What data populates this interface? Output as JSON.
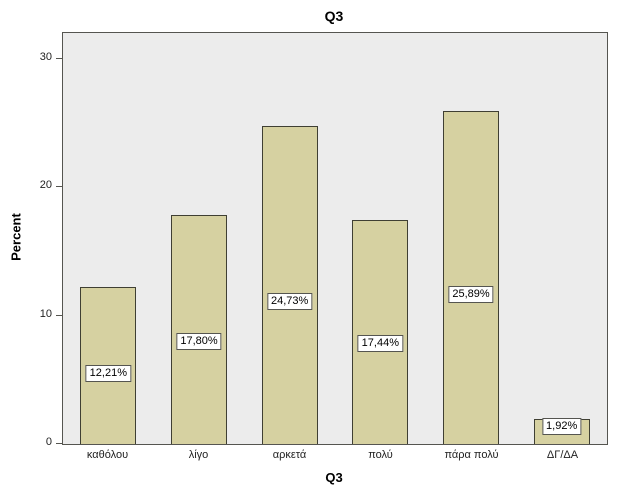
{
  "chart_data": {
    "type": "bar",
    "title": "Q3",
    "xlabel": "Q3",
    "ylabel": "Percent",
    "categories": [
      "καθόλου",
      "λίγο",
      "αρκετά",
      "πολύ",
      "πάρα πολύ",
      "ΔΓ/ΔΑ"
    ],
    "values": [
      12.21,
      17.8,
      24.73,
      17.44,
      25.89,
      1.92
    ],
    "value_labels": [
      "12,21%",
      "17,80%",
      "24,73%",
      "17,44%",
      "25,89%",
      "1,92%"
    ],
    "ylim": [
      0,
      32
    ],
    "yticks": [
      0,
      10,
      20,
      30
    ],
    "grid": false,
    "legend": "none",
    "bar_color": "#d6d1a1",
    "bar_border_color": "#3f3f33",
    "plot_background": "#ececec"
  }
}
